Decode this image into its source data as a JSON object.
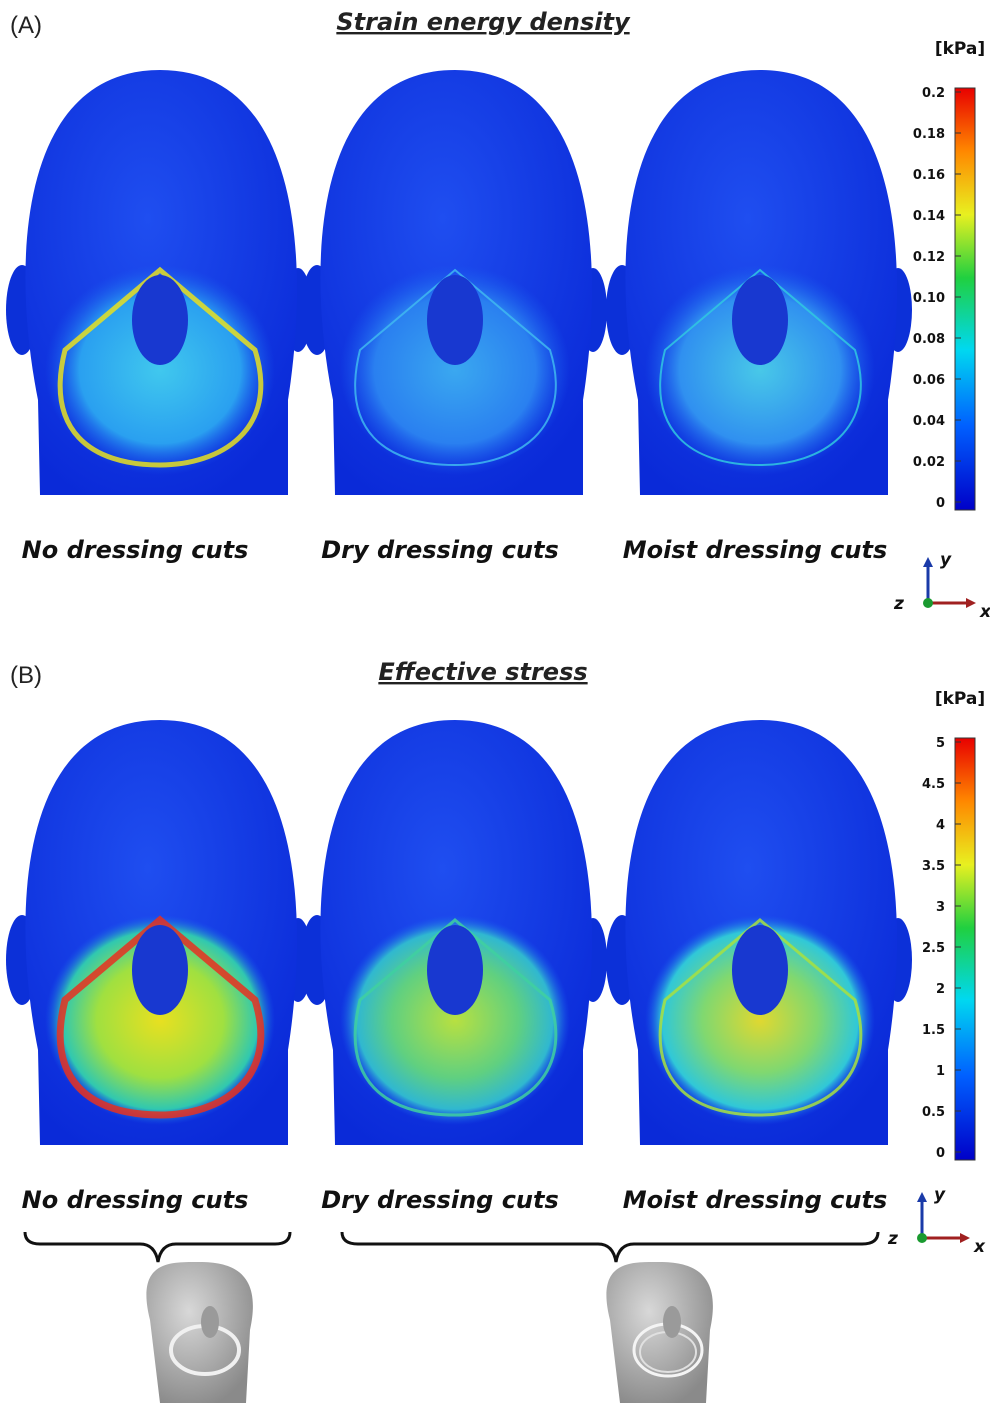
{
  "panels": [
    {
      "label": "(A)",
      "title": "Strain energy density",
      "unit": "[kPa]",
      "colorbar_ticks": [
        "0.2",
        "0.18",
        "0.16",
        "0.14",
        "0.12",
        "0.10",
        "0.08",
        "0.06",
        "0.04",
        "0.02",
        "0"
      ],
      "heads": [
        {
          "label": "No dressing cuts"
        },
        {
          "label": "Dry dressing cuts"
        },
        {
          "label": "Moist dressing cuts"
        }
      ],
      "axes": {
        "x": "x",
        "y": "y",
        "z": "z"
      }
    },
    {
      "label": "(B)",
      "title": "Effective stress",
      "unit": "[kPa]",
      "colorbar_ticks": [
        "5",
        "4.5",
        "4",
        "3.5",
        "3",
        "2.5",
        "2",
        "1.5",
        "1",
        "0.5",
        "0"
      ],
      "heads": [
        {
          "label": "No dressing cuts"
        },
        {
          "label": "Dry dressing cuts"
        },
        {
          "label": "Moist dressing cuts"
        }
      ],
      "axes": {
        "x": "x",
        "y": "y",
        "z": "z"
      }
    }
  ]
}
